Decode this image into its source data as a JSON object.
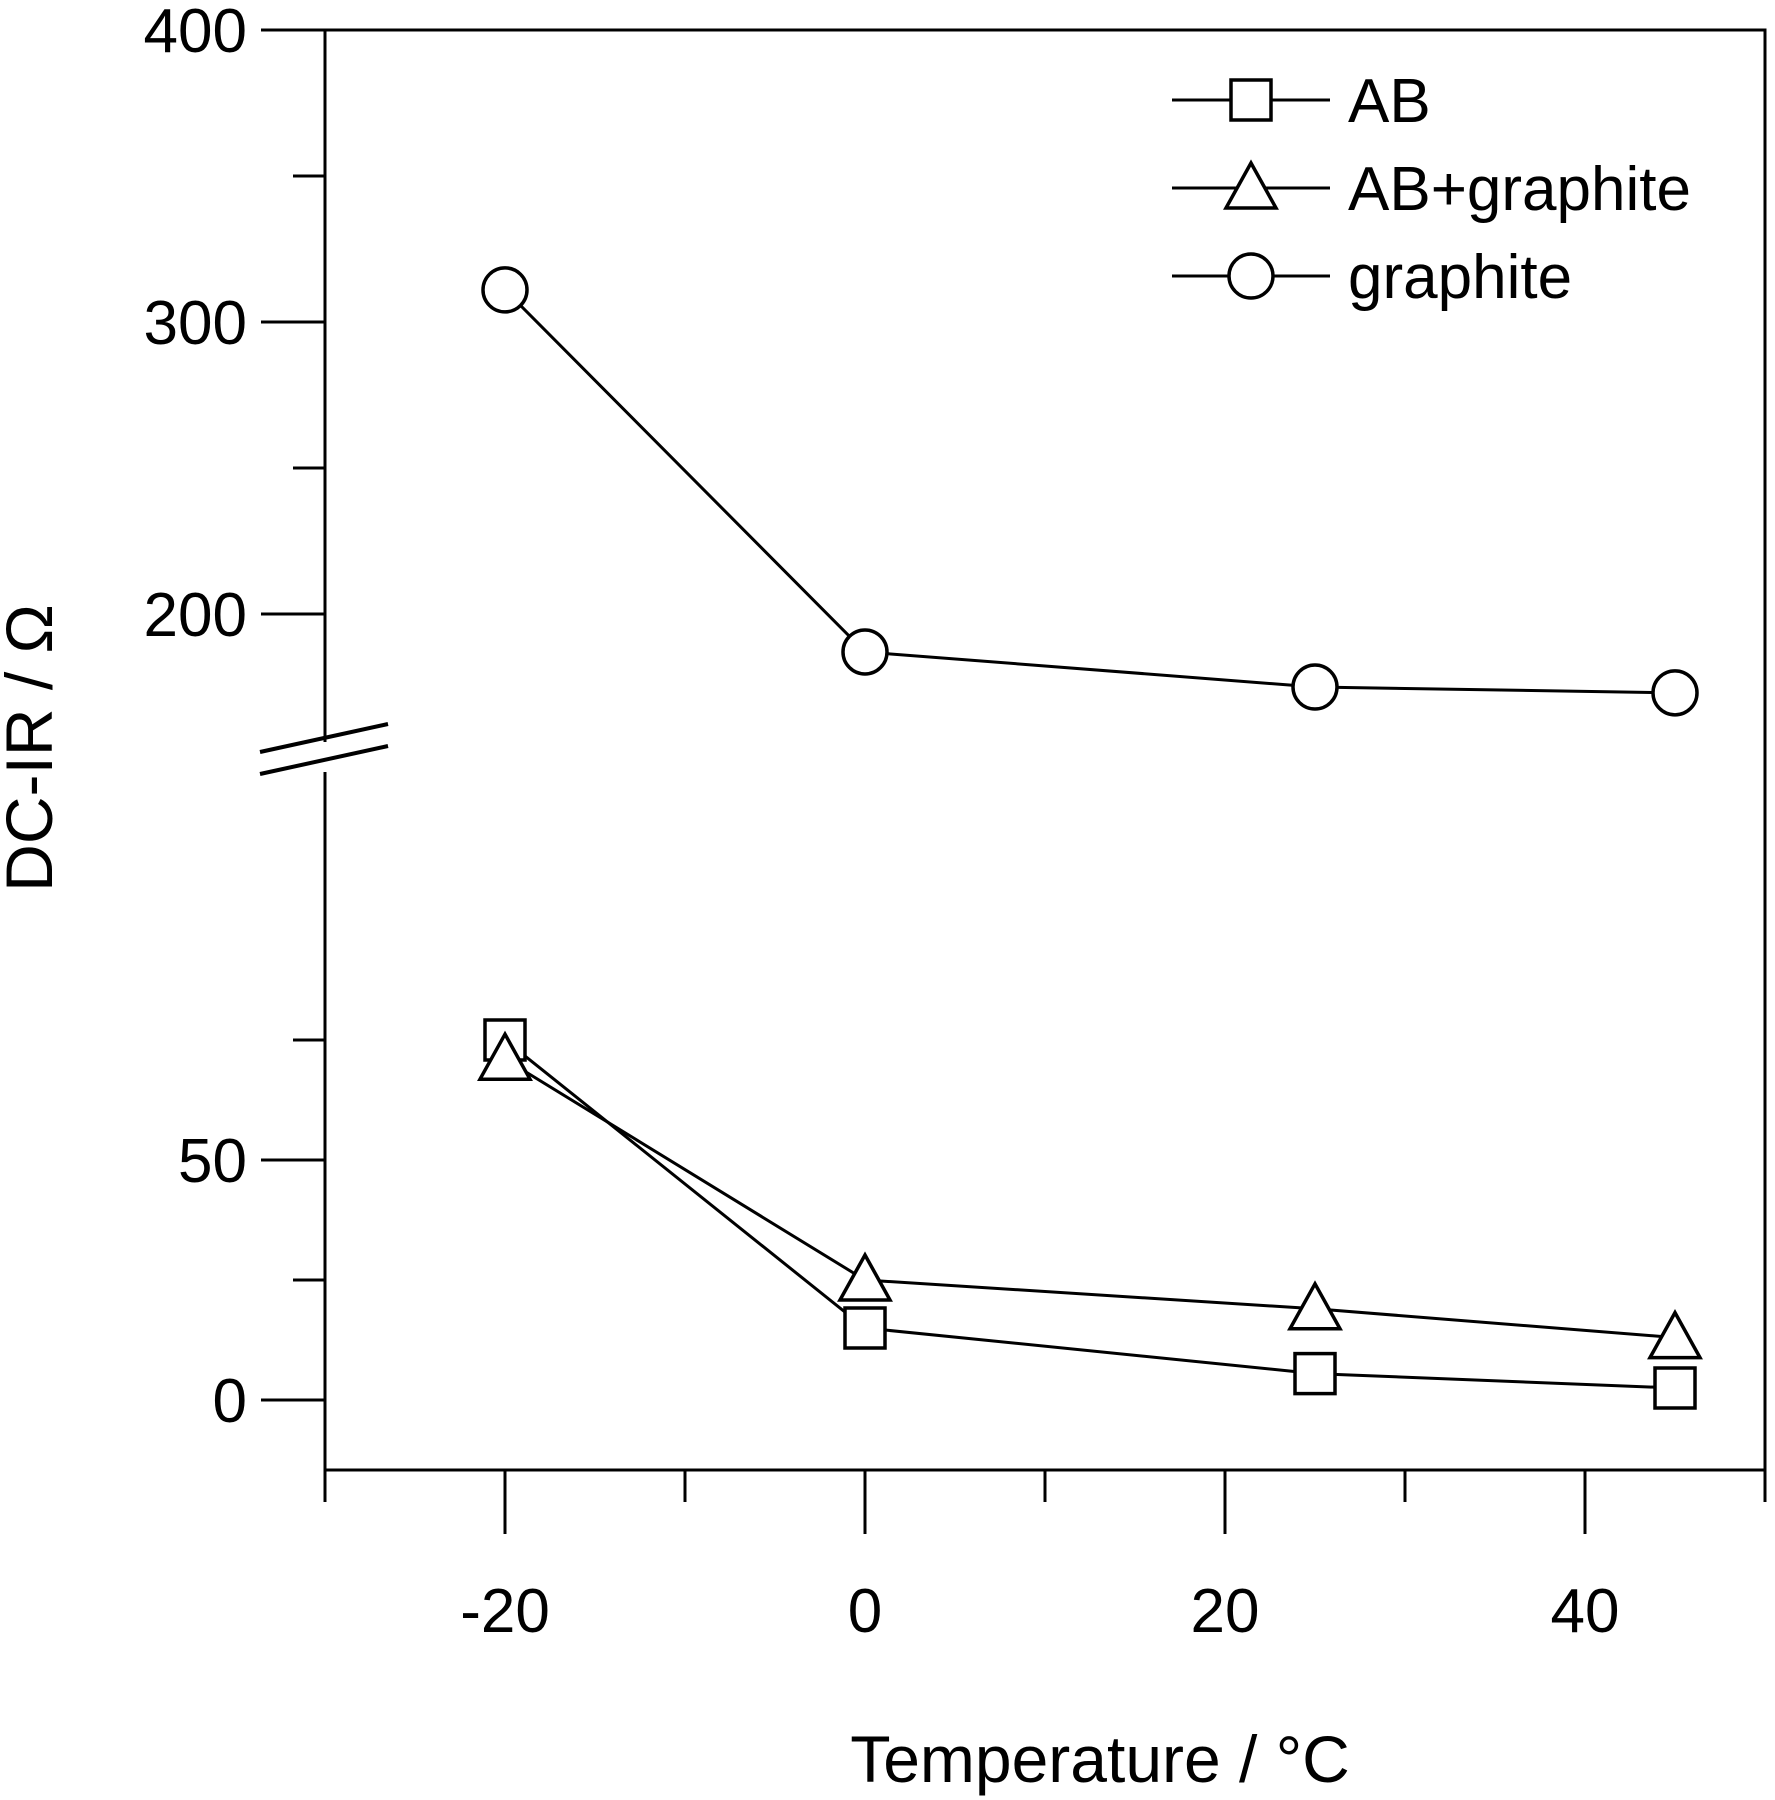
{
  "chart_data": {
    "type": "line",
    "title": "",
    "xlabel": "Temperature /  °C",
    "ylabel": "DC-IR / Ω",
    "x_ticks": [
      -20,
      0,
      20,
      40
    ],
    "x_minor_ticks": [
      -30,
      -10,
      10,
      30,
      50
    ],
    "xlim": [
      -30,
      50
    ],
    "y_axis_break": {
      "lower_range": [
        0,
        100
      ],
      "upper_range": [
        150,
        400
      ]
    },
    "y_ticks_lower": [
      0,
      50
    ],
    "y_minor_ticks_lower": [
      25,
      75
    ],
    "y_ticks_upper": [
      200,
      300,
      400
    ],
    "y_minor_ticks_upper": [
      250,
      350
    ],
    "x": [
      -20,
      0,
      25,
      45
    ],
    "series": [
      {
        "name": "AB",
        "marker": "square",
        "values": [
          75,
          15,
          5.5,
          2.5
        ]
      },
      {
        "name": "AB+graphite",
        "marker": "triangle",
        "values": [
          71,
          25,
          19,
          13
        ]
      },
      {
        "name": "graphite",
        "marker": "circle",
        "values": [
          311,
          187,
          175,
          173
        ]
      }
    ],
    "legend_position": "top-right",
    "grid": false,
    "line_color": "#000000",
    "marker_fill": "#ffffff"
  }
}
